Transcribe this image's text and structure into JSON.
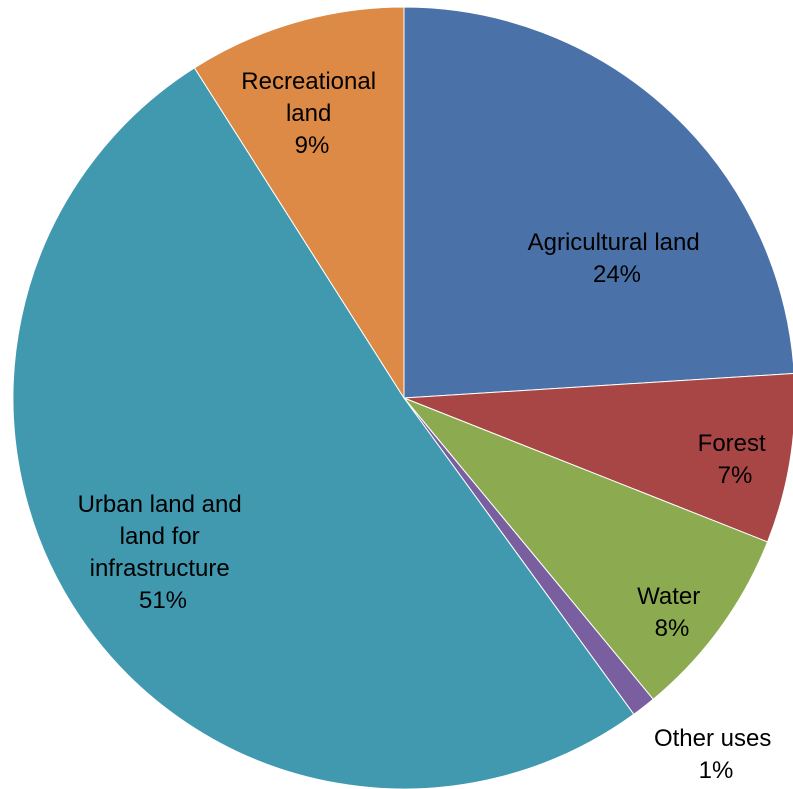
{
  "chart_data": {
    "type": "pie",
    "title": "",
    "slices": [
      {
        "label": "Agricultural land",
        "value": 24,
        "value_label": "24%",
        "color": "#4A72A8"
      },
      {
        "label": "Forest",
        "value": 7,
        "value_label": "7%",
        "color": "#A84545"
      },
      {
        "label": "Water",
        "value": 8,
        "value_label": "8%",
        "color": "#8CAB50"
      },
      {
        "label": "Other uses",
        "value": 1,
        "value_label": "1%",
        "color": "#7A5FA0"
      },
      {
        "label": "Urban land and land for infrastructure",
        "value": 51,
        "value_label": "51%",
        "color": "#4199B0"
      },
      {
        "label": "Recreational land",
        "value": 9,
        "value_label": "9%",
        "color": "#DC8A45"
      }
    ],
    "label_lines": {
      "agricultural": [
        "Agricultural  land",
        "24%"
      ],
      "forest": [
        "Forest",
        "7%"
      ],
      "water": [
        "Water",
        "8%"
      ],
      "other": [
        "Other uses",
        "1%"
      ],
      "urban": [
        "Urban land and",
        "land for",
        "infrastructure",
        "51%"
      ],
      "recreational": [
        "Recreational",
        "land",
        "9%"
      ]
    },
    "legend": "none",
    "start": "12 o'clock, clockwise"
  }
}
